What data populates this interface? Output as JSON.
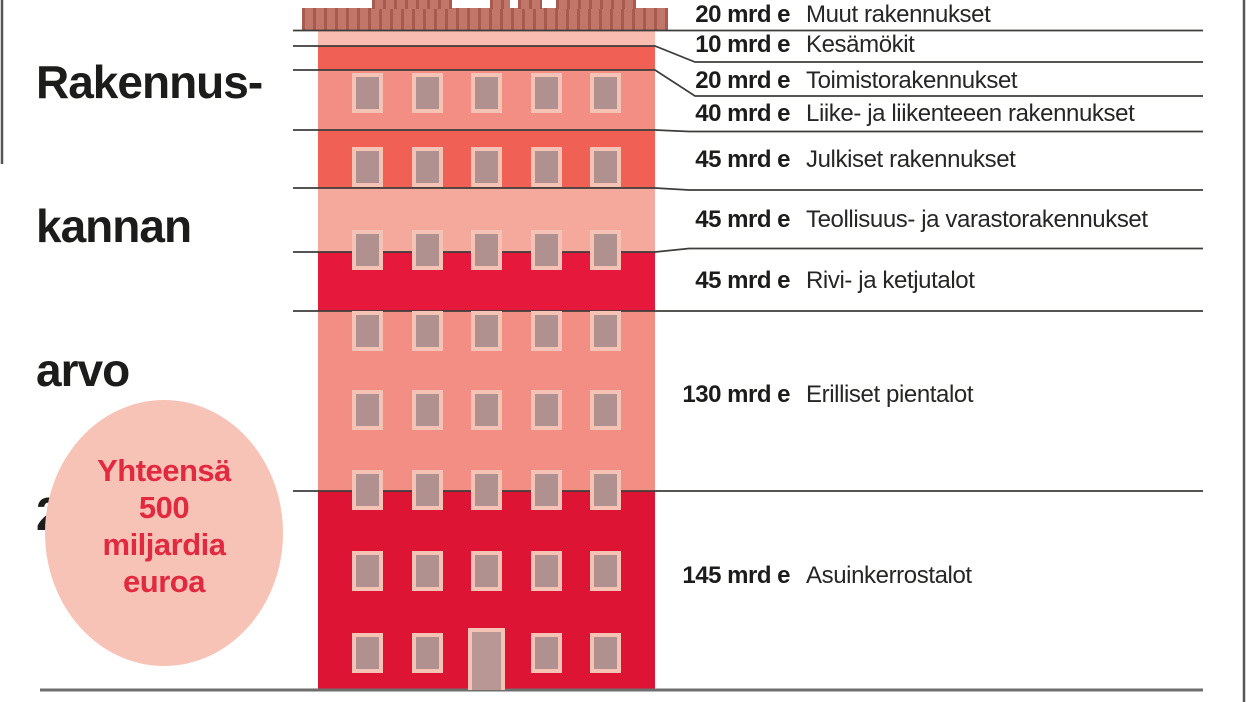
{
  "title": {
    "line1": "Rakennus-",
    "line2": "kannan",
    "line3": "arvo",
    "line4": "2019"
  },
  "bubble": {
    "line1": "Yhteensä",
    "line2": "500",
    "line3": "miljardia",
    "line4": "euroa"
  },
  "segments": [
    {
      "value": 20,
      "value_label": "20 mrd e",
      "name": "Muut rakennukset",
      "color": "#c1766a"
    },
    {
      "value": 10,
      "value_label": "10 mrd e",
      "name": "Kesämökit",
      "color": "#f8bdb0"
    },
    {
      "value": 20,
      "value_label": "20 mrd e",
      "name": "Toimistorakennukset",
      "color": "#f06055"
    },
    {
      "value": 40,
      "value_label": "40 mrd e",
      "name": "Liike- ja liikenteeen rakennukset",
      "color": "#f28e83"
    },
    {
      "value": 45,
      "value_label": "45 mrd e",
      "name": "Julkiset rakennukset",
      "color": "#f06055"
    },
    {
      "value": 45,
      "value_label": "45 mrd e",
      "name": "Teollisuus- ja varastorakennukset",
      "color": "#f5a99c"
    },
    {
      "value": 45,
      "value_label": "45 mrd e",
      "name": "Rivi- ja ketjutalot",
      "color": "#e6193c"
    },
    {
      "value": 130,
      "value_label": "130 mrd e",
      "name": "Erilliset pientalot",
      "color": "#f28e83"
    },
    {
      "value": 145,
      "value_label": "145 mrd e",
      "name": "Asuinkerrostalot",
      "color": "#de1434"
    }
  ],
  "colors": {
    "roof_base": "#c1766a",
    "roof_stripe": "#a85a4e",
    "window_frame": "#f5c3b6",
    "window_fill": "#b19090",
    "door_fill": "#b99795",
    "leader_line": "#3d3d3b",
    "ground_line": "#6e6e6e",
    "frame_border": "#565656",
    "title_text": "#1c1c1a",
    "bubble_bg": "#f8c3b7",
    "bubble_text": "#e12940"
  },
  "chart_data": {
    "type": "bar",
    "title": "Rakennuskannan arvo 2019",
    "subtitle": "Yhteensä 500 miljardia euroa",
    "unit": "mrd e",
    "orientation": "stacked-vertical-building-illustration",
    "categories": [
      "Muut rakennukset",
      "Kesämökit",
      "Toimistorakennukset",
      "Liike- ja liikenteeen rakennukset",
      "Julkiset rakennukset",
      "Teollisuus- ja varastorakennukset",
      "Rivi- ja ketjutalot",
      "Erilliset pientalot",
      "Asuinkerrostalot"
    ],
    "values": [
      20,
      10,
      20,
      40,
      45,
      45,
      45,
      130,
      145
    ],
    "total": 500,
    "legend_position": "right",
    "grid": false
  }
}
